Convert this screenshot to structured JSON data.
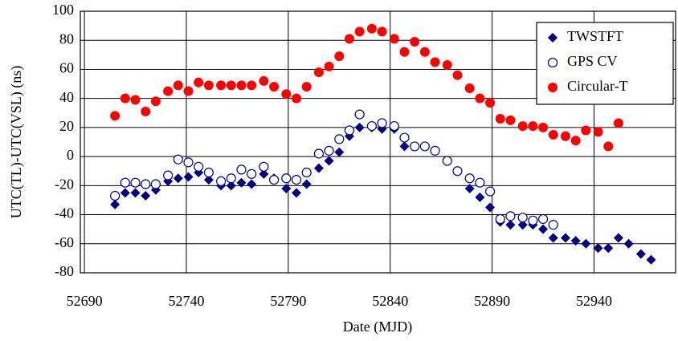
{
  "chart_data": {
    "type": "scatter",
    "xlabel": "Date (MJD)",
    "ylabel": "UTC(TL)-UTC(VSL) (ns)",
    "xlim": [
      52688,
      52980
    ],
    "xticks": [
      52690,
      52740,
      52790,
      52840,
      52890,
      52940
    ],
    "ylim": [
      -80,
      100
    ],
    "yticks": [
      -80,
      -60,
      -40,
      -20,
      0,
      20,
      40,
      60,
      80,
      100
    ],
    "grid": true,
    "legend": "upper right",
    "series": [
      {
        "name": "TWSTFT",
        "color": "#000080",
        "marker": "diamond",
        "x": [
          52705,
          52710,
          52715,
          52720,
          52725,
          52731,
          52736,
          52741,
          52746,
          52751,
          52757,
          52762,
          52767,
          52772,
          52778,
          52783,
          52789,
          52794,
          52799,
          52805,
          52810,
          52815,
          52820,
          52825,
          52831,
          52836,
          52842,
          52847,
          52879,
          52884,
          52889,
          52894,
          52899,
          52905,
          52910,
          52915,
          52920,
          52926,
          52931,
          52936,
          52942,
          52947,
          52952,
          52957,
          52963,
          52968
        ],
        "values": [
          -33,
          -25,
          -25,
          -27,
          -23,
          -17,
          -15,
          -14,
          -11,
          -16,
          -20,
          -20,
          -18,
          -19,
          -12,
          -15,
          -22,
          -25,
          -19,
          -8,
          -3,
          3,
          14,
          20,
          20,
          19,
          19,
          7,
          -22,
          -28,
          -35,
          -45,
          -47,
          -47,
          -47,
          -50,
          -56,
          -56,
          -58,
          -60,
          -63,
          -63,
          -56,
          -60,
          -67,
          -71
        ]
      },
      {
        "name": "GPS CV",
        "color": "#000080",
        "marker": "open-circle",
        "x": [
          52705,
          52710,
          52715,
          52720,
          52725,
          52731,
          52736,
          52741,
          52746,
          52751,
          52757,
          52762,
          52767,
          52772,
          52778,
          52783,
          52789,
          52794,
          52799,
          52805,
          52810,
          52815,
          52820,
          52825,
          52831,
          52836,
          52842,
          52847,
          52852,
          52857,
          52862,
          52868,
          52873,
          52879,
          52884,
          52889,
          52894,
          52899,
          52905,
          52910,
          52915,
          52920
        ],
        "values": [
          -27,
          -18,
          -18,
          -19,
          -19,
          -13,
          -2,
          -4,
          -7,
          -11,
          -17,
          -15,
          -9,
          -12,
          -7,
          -16,
          -15,
          -16,
          -11,
          2,
          4,
          12,
          18,
          29,
          21,
          23,
          21,
          13,
          7,
          7,
          4,
          -3,
          -10,
          -15,
          -18,
          -24,
          -43,
          -41,
          -42,
          -44,
          -43,
          -47
        ]
      },
      {
        "name": "Circular-T",
        "color": "#ff0000",
        "marker": "circle",
        "x": [
          52705,
          52710,
          52715,
          52720,
          52725,
          52731,
          52736,
          52741,
          52746,
          52751,
          52757,
          52762,
          52767,
          52772,
          52778,
          52783,
          52789,
          52794,
          52799,
          52805,
          52810,
          52815,
          52820,
          52825,
          52831,
          52836,
          52842,
          52847,
          52852,
          52857,
          52862,
          52868,
          52873,
          52879,
          52884,
          52889,
          52894,
          52899,
          52905,
          52910,
          52915,
          52920,
          52926,
          52931,
          52936,
          52942,
          52947,
          52952
        ],
        "values": [
          28,
          40,
          39,
          31,
          38,
          45,
          49,
          45,
          51,
          49,
          49,
          49,
          49,
          49,
          52,
          48,
          43,
          40,
          48,
          58,
          62,
          69,
          81,
          86,
          88,
          86,
          81,
          72,
          79,
          72,
          65,
          63,
          56,
          47,
          40,
          37,
          26,
          25,
          21,
          21,
          20,
          15,
          14,
          11,
          18,
          17,
          7,
          23
        ]
      }
    ]
  }
}
